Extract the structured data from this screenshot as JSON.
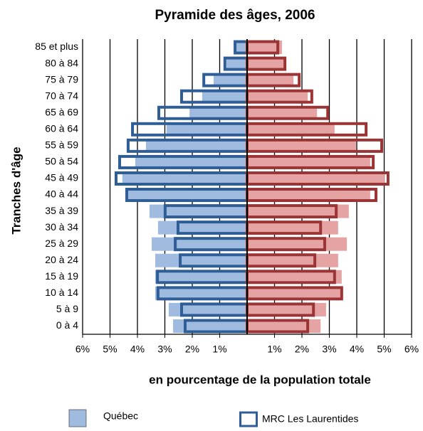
{
  "chart_data": {
    "type": "pyramid",
    "title": "Pyramide des âges, 2006",
    "x_label": "en pourcentage de la population totale",
    "y_label": "Tranches d'âge",
    "categories": [
      "0 à 4",
      "5 à 9",
      "10 à 14",
      "15 à 19",
      "20 à 24",
      "25 à 29",
      "30 à 34",
      "35 à 39",
      "40 à 44",
      "45 à 49",
      "50 à 54",
      "55 à 59",
      "60 à 64",
      "65 à 69",
      "70 à 74",
      "75 à 79",
      "80 à 84",
      "85 et plus"
    ],
    "series": [
      {
        "name": "Québec",
        "style": "fill",
        "colors": [
          "#9fbbe0",
          "#e6a3a3"
        ],
        "left": [
          2.7,
          2.86,
          3.35,
          3.35,
          3.35,
          3.48,
          3.25,
          3.56,
          4.34,
          4.55,
          4.08,
          3.69,
          2.94,
          2.1,
          1.64,
          1.22,
          0.75,
          0.44
        ],
        "right": [
          2.68,
          2.88,
          3.4,
          3.45,
          3.32,
          3.64,
          3.32,
          3.71,
          4.49,
          5.01,
          4.49,
          3.97,
          3.19,
          2.55,
          2.21,
          1.69,
          1.38,
          1.27
        ]
      },
      {
        "name": "MRC Les Laurentides",
        "style": "outline",
        "colors": [
          "#2f5d96",
          "#9b3535"
        ],
        "left": [
          2.26,
          2.39,
          3.25,
          3.27,
          2.44,
          2.62,
          2.52,
          2.99,
          4.39,
          4.78,
          4.65,
          4.34,
          4.18,
          3.22,
          2.39,
          1.58,
          0.81,
          0.44
        ],
        "right": [
          2.21,
          2.42,
          3.45,
          3.19,
          2.47,
          2.83,
          2.68,
          3.25,
          4.7,
          5.14,
          4.6,
          4.91,
          4.34,
          2.94,
          2.36,
          1.9,
          1.38,
          1.12
        ]
      }
    ],
    "xlim": [
      -6,
      6
    ],
    "xticks": [
      {
        "value": -6,
        "label": "6%"
      },
      {
        "value": -5,
        "label": "5%"
      },
      {
        "value": -4,
        "label": "4%"
      },
      {
        "value": -3,
        "label": "3%"
      },
      {
        "value": -2,
        "label": "2%"
      },
      {
        "value": -1,
        "label": "1%"
      },
      {
        "value": 1,
        "label": "1%"
      },
      {
        "value": 2,
        "label": "2%"
      },
      {
        "value": 3,
        "label": "3%"
      },
      {
        "value": 4,
        "label": "4%"
      },
      {
        "value": 5,
        "label": "5%"
      },
      {
        "value": 6,
        "label": "6%"
      }
    ],
    "grid": true
  }
}
